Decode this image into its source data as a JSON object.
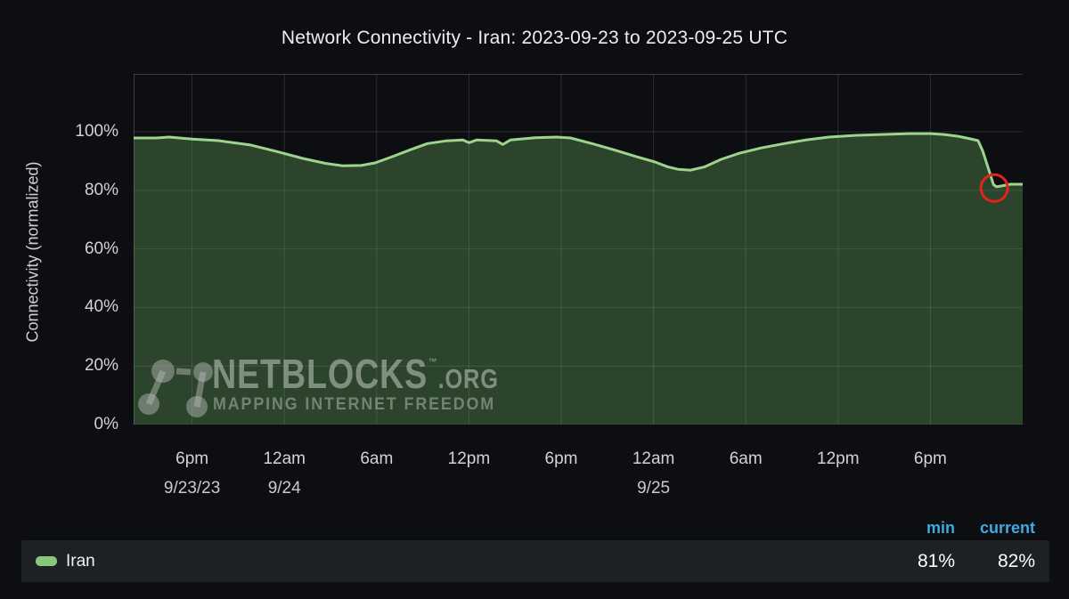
{
  "title": "Network Connectivity - Iran: 2023-09-23 to 2023-09-25 UTC",
  "y_axis_label": "Connectivity (normalized)",
  "watermark": {
    "brand": "NETBLOCKS",
    "tm": "TM",
    "suffix": ".ORG",
    "tagline": "MAPPING INTERNET FREEDOM"
  },
  "legend": {
    "series_label": "Iran",
    "min_header": "min",
    "current_header": "current",
    "min_value": "81%",
    "current_value": "82%",
    "swatch_color": "#86C87C"
  },
  "colors": {
    "background": "#0d0e12",
    "line": "#9CD48E",
    "fill": "rgba(115,191,105,0.30)",
    "grid": "rgba(205,210,222,0.16)",
    "grid_border": "rgba(205,210,222,0.24)",
    "annotation": "#E3241B",
    "header_blue": "#3FA9E0"
  },
  "chart_data": {
    "type": "area",
    "title": "Network Connectivity - Iran: 2023-09-23 to 2023-09-25 UTC",
    "ylabel": "Connectivity (normalized)",
    "xlabel": "",
    "x_unit": "hours since 2023-09-23 18:00 UTC",
    "x_range_hours": [
      -3.8,
      54
    ],
    "y_range_pct": [
      0,
      119.8
    ],
    "grid": true,
    "legend_position": "bottom",
    "x_ticks": [
      {
        "hour": 0,
        "label": "6pm",
        "date": "9/23/23"
      },
      {
        "hour": 6,
        "label": "12am",
        "date": "9/24"
      },
      {
        "hour": 12,
        "label": "6am"
      },
      {
        "hour": 18,
        "label": "12pm"
      },
      {
        "hour": 24,
        "label": "6pm"
      },
      {
        "hour": 30,
        "label": "12am",
        "date": "9/25"
      },
      {
        "hour": 36,
        "label": "6am"
      },
      {
        "hour": 42,
        "label": "12pm"
      },
      {
        "hour": 48,
        "label": "6pm"
      }
    ],
    "y_ticks": [
      {
        "pct": 0,
        "label": "0%"
      },
      {
        "pct": 20,
        "label": "20%"
      },
      {
        "pct": 40,
        "label": "40%"
      },
      {
        "pct": 60,
        "label": "60%"
      },
      {
        "pct": 80,
        "label": "80%"
      },
      {
        "pct": 100,
        "label": "100%"
      }
    ],
    "series": [
      {
        "name": "Iran",
        "min": 81,
        "current": 82,
        "points": [
          [
            -3.8,
            97.9
          ],
          [
            -2.3,
            97.9
          ],
          [
            -1.5,
            98.2
          ],
          [
            0,
            97.5
          ],
          [
            1.7,
            97.0
          ],
          [
            3.8,
            95.5
          ],
          [
            5.5,
            93.3
          ],
          [
            7.2,
            90.9
          ],
          [
            8.7,
            89.2
          ],
          [
            9.8,
            88.4
          ],
          [
            11.0,
            88.5
          ],
          [
            11.9,
            89.4
          ],
          [
            13.0,
            91.5
          ],
          [
            14.2,
            93.9
          ],
          [
            15.3,
            96.0
          ],
          [
            16.5,
            96.9
          ],
          [
            17.6,
            97.2
          ],
          [
            18.0,
            96.3
          ],
          [
            18.5,
            97.2
          ],
          [
            19.8,
            96.9
          ],
          [
            20.2,
            95.7
          ],
          [
            20.7,
            97.2
          ],
          [
            22.3,
            98.0
          ],
          [
            23.7,
            98.2
          ],
          [
            24.6,
            97.9
          ],
          [
            26.0,
            96.0
          ],
          [
            27.4,
            93.9
          ],
          [
            28.9,
            91.5
          ],
          [
            30.1,
            89.7
          ],
          [
            30.9,
            88.1
          ],
          [
            31.6,
            87.2
          ],
          [
            32.4,
            86.9
          ],
          [
            33.3,
            88.0
          ],
          [
            34.4,
            90.6
          ],
          [
            35.6,
            92.7
          ],
          [
            37.0,
            94.5
          ],
          [
            38.5,
            96.0
          ],
          [
            39.9,
            97.2
          ],
          [
            41.4,
            98.2
          ],
          [
            43.1,
            98.8
          ],
          [
            44.8,
            99.1
          ],
          [
            46.6,
            99.4
          ],
          [
            48.0,
            99.4
          ],
          [
            48.9,
            99.1
          ],
          [
            49.8,
            98.5
          ],
          [
            50.6,
            97.6
          ],
          [
            51.1,
            97.0
          ],
          [
            51.4,
            93.5
          ],
          [
            51.8,
            87.0
          ],
          [
            52.1,
            82.0
          ],
          [
            52.3,
            81.2
          ],
          [
            52.6,
            81.5
          ],
          [
            53.2,
            82.1
          ],
          [
            54.0,
            82.1
          ]
        ]
      }
    ],
    "annotation_circle": {
      "hour": 52.15,
      "pct": 80.8,
      "radius_px": 15
    }
  }
}
